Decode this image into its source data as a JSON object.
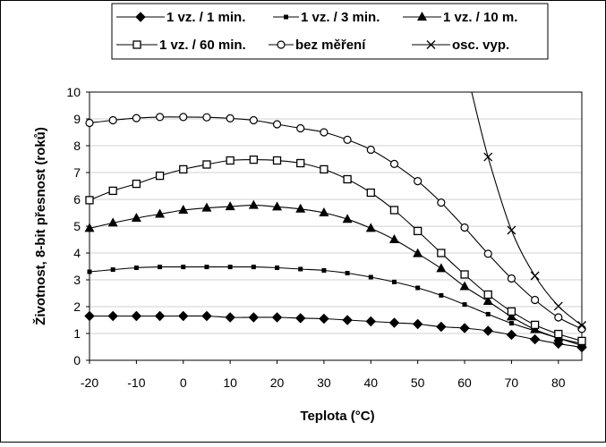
{
  "chart_data": {
    "type": "line",
    "xlabel": "Teplota (°C)",
    "ylabel": "Životnost, 8-bit přesnost (roků)",
    "xlim": [
      -20,
      85
    ],
    "ylim": [
      0,
      10
    ],
    "x_ticks": [
      "-20",
      "-10",
      "0",
      "10",
      "20",
      "30",
      "40",
      "50",
      "60",
      "70",
      "80"
    ],
    "y_ticks": [
      "0",
      "1",
      "2",
      "3",
      "4",
      "5",
      "6",
      "7",
      "8",
      "9",
      "10"
    ],
    "grid": "horizontal",
    "legend_position": "top",
    "series": [
      {
        "name": "1 vz. / 1 min.",
        "marker": "diamond-filled",
        "x": [
          -20,
          -15,
          -10,
          -5,
          0,
          5,
          10,
          15,
          20,
          25,
          30,
          35,
          40,
          45,
          50,
          55,
          60,
          65,
          70,
          75,
          80,
          85
        ],
        "y": [
          1.65,
          1.65,
          1.65,
          1.65,
          1.65,
          1.65,
          1.6,
          1.6,
          1.6,
          1.57,
          1.55,
          1.5,
          1.45,
          1.4,
          1.35,
          1.25,
          1.2,
          1.1,
          0.95,
          0.78,
          0.62,
          0.48
        ]
      },
      {
        "name": "1 vz. / 3 min.",
        "marker": "square-small-filled",
        "x": [
          -20,
          -15,
          -10,
          -5,
          0,
          5,
          10,
          15,
          20,
          25,
          30,
          35,
          40,
          45,
          50,
          55,
          60,
          65,
          70,
          75,
          80,
          85
        ],
        "y": [
          3.3,
          3.38,
          3.45,
          3.48,
          3.48,
          3.48,
          3.48,
          3.48,
          3.45,
          3.4,
          3.35,
          3.25,
          3.1,
          2.92,
          2.7,
          2.42,
          2.08,
          1.72,
          1.38,
          1.1,
          0.82,
          0.55
        ]
      },
      {
        "name": "1 vz. / 10 m.",
        "marker": "triangle-filled",
        "x": [
          -20,
          -15,
          -10,
          -5,
          0,
          5,
          10,
          15,
          20,
          25,
          30,
          35,
          40,
          45,
          50,
          55,
          60,
          65,
          70,
          75,
          80,
          85
        ],
        "y": [
          4.92,
          5.12,
          5.3,
          5.45,
          5.6,
          5.68,
          5.73,
          5.78,
          5.72,
          5.64,
          5.5,
          5.26,
          4.92,
          4.5,
          3.98,
          3.42,
          2.75,
          2.2,
          1.62,
          1.15,
          0.83,
          0.62
        ]
      },
      {
        "name": "1 vz. / 60 min.",
        "marker": "square-open",
        "x": [
          -20,
          -15,
          -10,
          -5,
          0,
          5,
          10,
          15,
          20,
          25,
          30,
          35,
          40,
          45,
          50,
          55,
          60,
          65,
          70,
          75,
          80,
          85
        ],
        "y": [
          5.97,
          6.32,
          6.58,
          6.88,
          7.12,
          7.3,
          7.45,
          7.48,
          7.45,
          7.35,
          7.12,
          6.75,
          6.25,
          5.6,
          4.82,
          4.0,
          3.2,
          2.45,
          1.82,
          1.32,
          0.98,
          0.72
        ]
      },
      {
        "name": "bez měření",
        "marker": "circle-open",
        "x": [
          -20,
          -15,
          -10,
          -5,
          0,
          5,
          10,
          15,
          20,
          25,
          30,
          35,
          40,
          45,
          50,
          55,
          60,
          65,
          70,
          75,
          80,
          85
        ],
        "y": [
          8.85,
          8.95,
          9.03,
          9.07,
          9.07,
          9.06,
          9.02,
          8.95,
          8.8,
          8.65,
          8.5,
          8.22,
          7.85,
          7.32,
          6.68,
          5.88,
          4.95,
          3.97,
          3.05,
          2.25,
          1.6,
          1.17
        ]
      },
      {
        "name": "osc. vyp.",
        "marker": "x",
        "x": [
          65,
          70,
          75,
          80,
          85
        ],
        "y": [
          7.58,
          4.85,
          3.15,
          2.02,
          1.3
        ],
        "curve_start": [
          61.5,
          10
        ]
      }
    ]
  }
}
